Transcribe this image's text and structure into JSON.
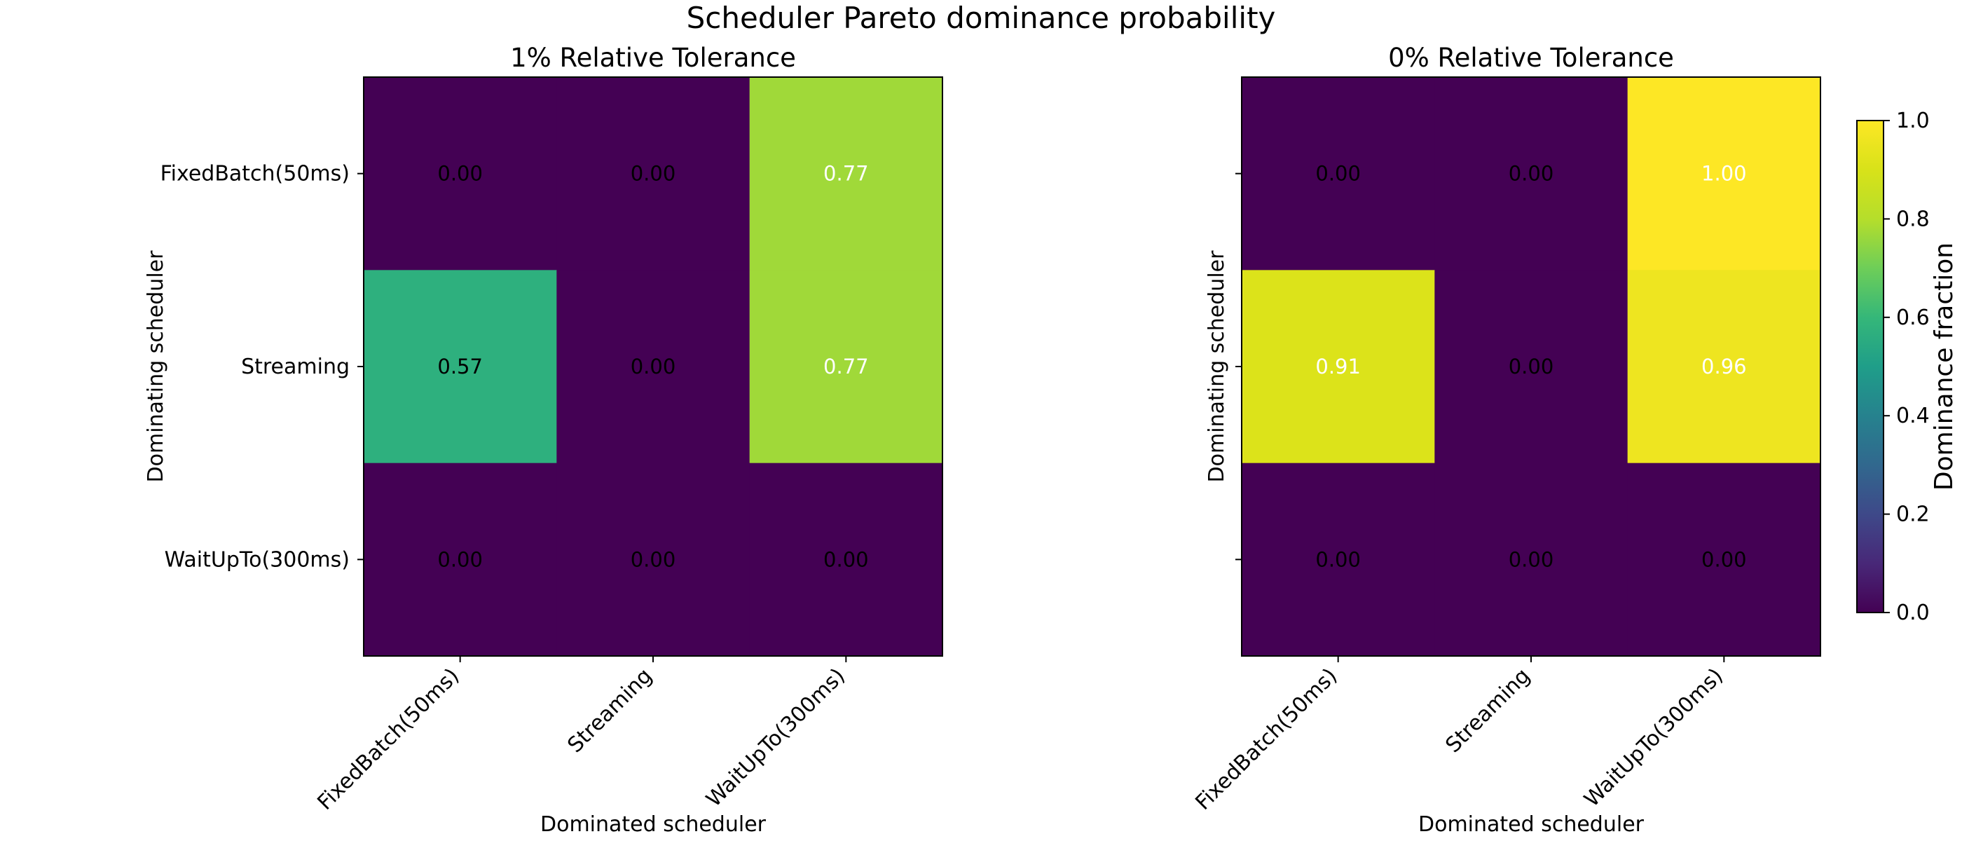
{
  "figure": {
    "title": "Scheduler Pareto dominance probability"
  },
  "chart_data": [
    {
      "type": "heatmap",
      "title": "1% Relative Tolerance",
      "xlabel": "Dominated scheduler",
      "ylabel": "Dominating scheduler",
      "x_categories": [
        "FixedBatch(50ms)",
        "Streaming",
        "WaitUpTo(300ms)"
      ],
      "y_categories": [
        "FixedBatch(50ms)",
        "Streaming",
        "WaitUpTo(300ms)"
      ],
      "values": [
        [
          0.0,
          0.0,
          0.77
        ],
        [
          0.57,
          0.0,
          0.77
        ],
        [
          0.0,
          0.0,
          0.0
        ]
      ],
      "cell_labels": [
        [
          "0.00",
          "0.00",
          "0.77"
        ],
        [
          "0.57",
          "0.00",
          "0.77"
        ],
        [
          "0.00",
          "0.00",
          "0.00"
        ]
      ],
      "colormap": "viridis",
      "vmin": 0,
      "vmax": 1
    },
    {
      "type": "heatmap",
      "title": "0% Relative Tolerance",
      "xlabel": "Dominated scheduler",
      "ylabel": "Dominating scheduler",
      "x_categories": [
        "FixedBatch(50ms)",
        "Streaming",
        "WaitUpTo(300ms)"
      ],
      "y_categories": [
        "FixedBatch(50ms)",
        "Streaming",
        "WaitUpTo(300ms)"
      ],
      "values": [
        [
          0.0,
          0.0,
          1.0
        ],
        [
          0.91,
          0.0,
          0.96
        ],
        [
          0.0,
          0.0,
          0.0
        ]
      ],
      "cell_labels": [
        [
          "0.00",
          "0.00",
          "1.00"
        ],
        [
          "0.91",
          "0.00",
          "0.96"
        ],
        [
          "0.00",
          "0.00",
          "0.00"
        ]
      ],
      "colormap": "viridis",
      "vmin": 0,
      "vmax": 1
    }
  ],
  "colorbar": {
    "label": "Dominance fraction",
    "ticks": [
      "0.0",
      "0.2",
      "0.4",
      "0.6",
      "0.8",
      "1.0"
    ],
    "range": [
      0,
      1
    ]
  }
}
